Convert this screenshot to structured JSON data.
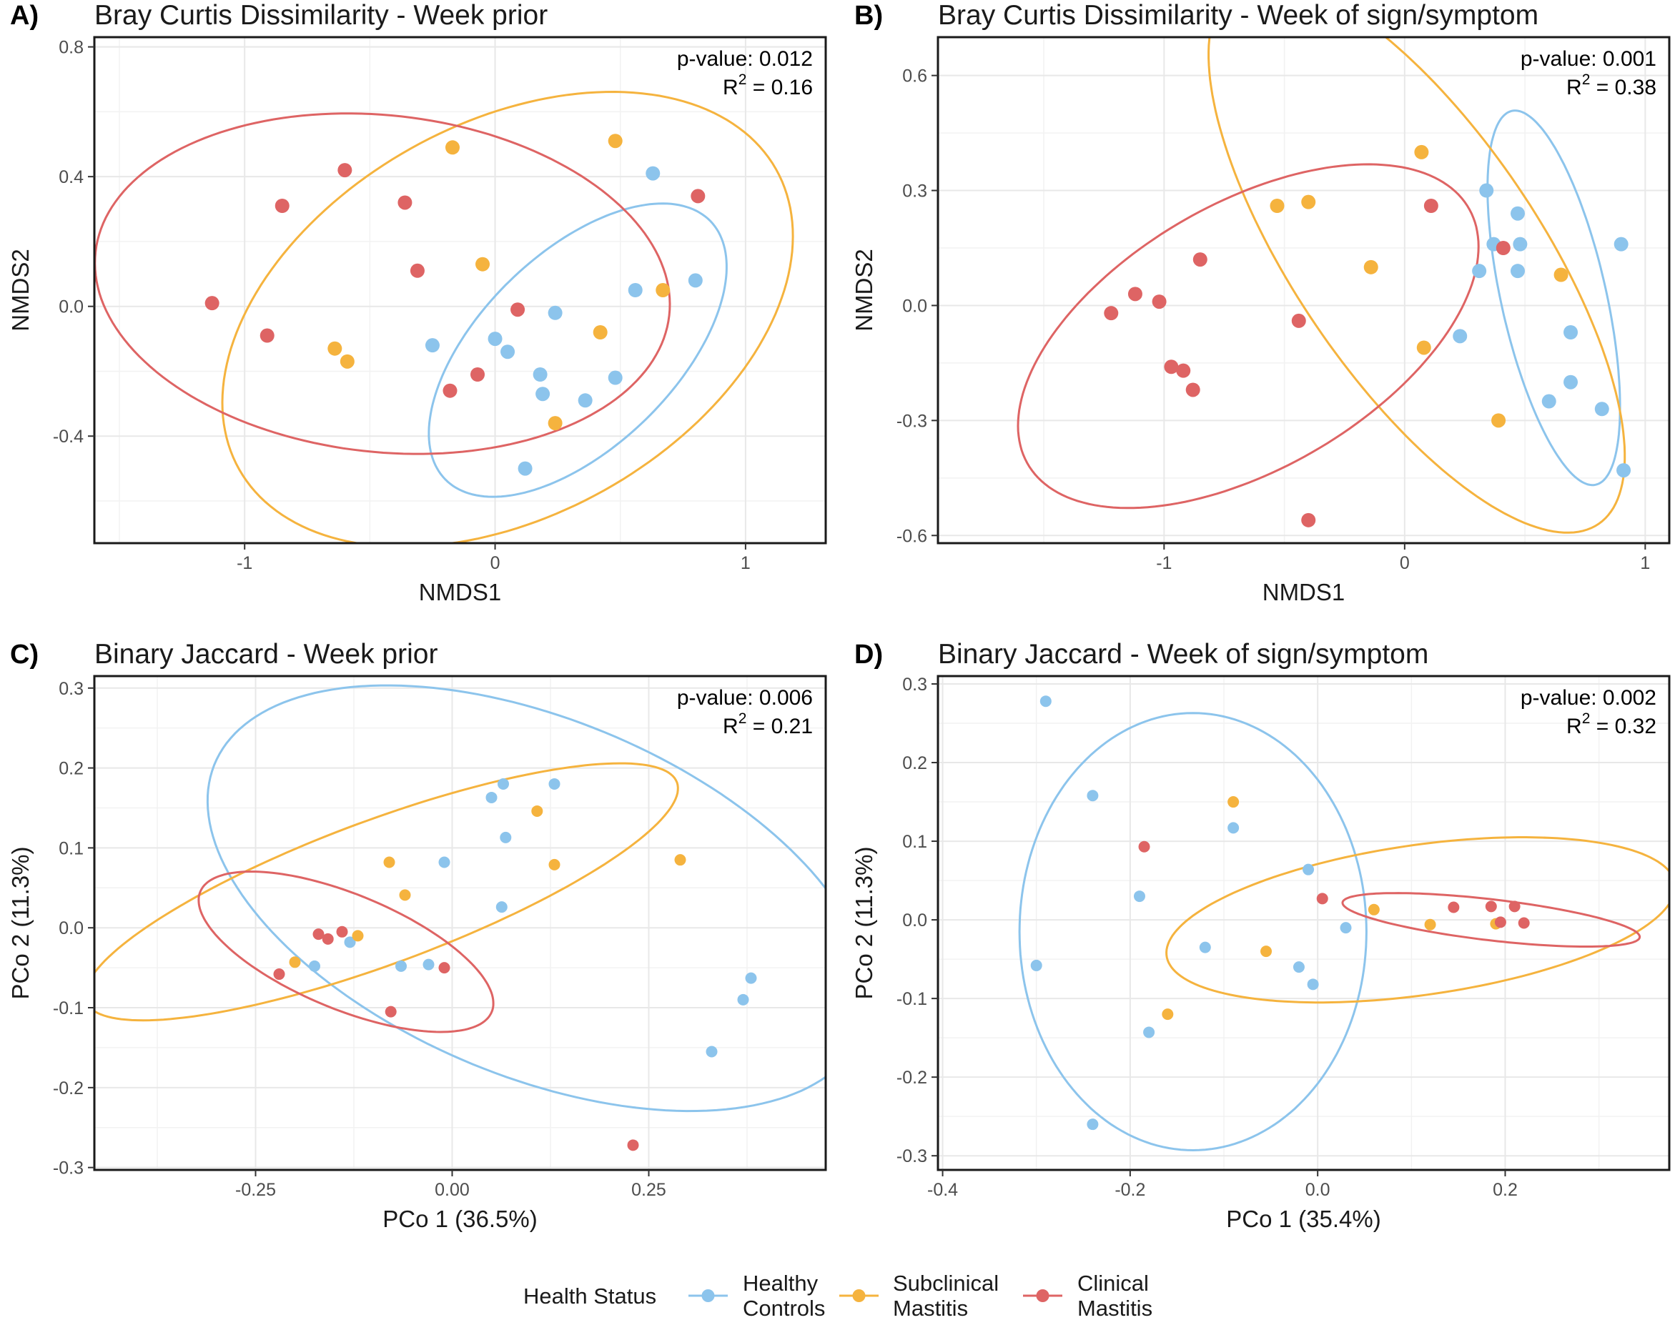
{
  "legend": {
    "title": "Health Status",
    "groups": [
      {
        "key": "HC",
        "line1": "Healthy",
        "line2": "Controls",
        "color": "#8CC4EC"
      },
      {
        "key": "SM",
        "line1": "Subclinical",
        "line2": "Mastitis",
        "color": "#F5B33E"
      },
      {
        "key": "CM",
        "line1": "Clinical",
        "line2": "Mastitis",
        "color": "#DE6464"
      }
    ]
  },
  "chart_data": [
    {
      "type": "scatter",
      "letter": "A)",
      "title": "Bray Curtis Dissimilarity - Week prior",
      "xlabel": "NMDS1",
      "ylabel": "NMDS2",
      "xlim": [
        -1.6,
        1.32
      ],
      "ylim": [
        -0.73,
        0.83
      ],
      "xticks": [
        -1,
        0,
        1
      ],
      "xtick_labels": [
        "-1",
        "0",
        "1"
      ],
      "yticks": [
        -0.4,
        0.0,
        0.4,
        0.8
      ],
      "ytick_labels": [
        "-0.4",
        "0.0",
        "0.4",
        "0.8"
      ],
      "stats": {
        "pvalue": "p-value: 0.012",
        "r2": "0.16"
      },
      "series": [
        {
          "group": "HC",
          "points": [
            [
              0.63,
              0.41
            ],
            [
              0.56,
              0.05
            ],
            [
              0.8,
              0.08
            ],
            [
              0.24,
              -0.02
            ],
            [
              0.0,
              -0.1
            ],
            [
              0.05,
              -0.14
            ],
            [
              -0.25,
              -0.12
            ],
            [
              0.18,
              -0.21
            ],
            [
              0.19,
              -0.27
            ],
            [
              0.36,
              -0.29
            ],
            [
              0.48,
              -0.22
            ],
            [
              0.12,
              -0.5
            ]
          ],
          "ellipse": {
            "cx": 0.33,
            "cy": -0.135,
            "rx": 0.67,
            "ry": 0.33,
            "angle": 32
          }
        },
        {
          "group": "SM",
          "points": [
            [
              -0.17,
              0.49
            ],
            [
              0.48,
              0.51
            ],
            [
              -0.05,
              0.13
            ],
            [
              0.67,
              0.05
            ],
            [
              0.42,
              -0.08
            ],
            [
              -0.64,
              -0.13
            ],
            [
              -0.59,
              -0.17
            ],
            [
              0.24,
              -0.36
            ]
          ],
          "ellipse": {
            "cx": 0.05,
            "cy": -0.04,
            "rx": 1.18,
            "ry": 0.63,
            "angle": 18
          }
        },
        {
          "group": "CM",
          "points": [
            [
              -0.6,
              0.42
            ],
            [
              -0.36,
              0.32
            ],
            [
              -0.85,
              0.31
            ],
            [
              -0.31,
              0.11
            ],
            [
              -1.13,
              0.01
            ],
            [
              -0.91,
              -0.09
            ],
            [
              0.09,
              -0.01
            ],
            [
              -0.07,
              -0.21
            ],
            [
              -0.18,
              -0.26
            ],
            [
              0.81,
              0.34
            ]
          ],
          "ellipse": {
            "cx": -0.45,
            "cy": 0.07,
            "rx": 1.15,
            "ry": 0.52,
            "angle": -4
          }
        }
      ]
    },
    {
      "type": "scatter",
      "letter": "B)",
      "title": "Bray Curtis Dissimilarity - Week of sign/symptom",
      "xlabel": "NMDS1",
      "ylabel": "NMDS2",
      "xlim": [
        -1.94,
        1.1
      ],
      "ylim": [
        -0.62,
        0.7
      ],
      "xticks": [
        -1,
        0,
        1
      ],
      "xtick_labels": [
        "-1",
        "0",
        "1"
      ],
      "yticks": [
        -0.6,
        -0.3,
        0.0,
        0.3,
        0.6
      ],
      "ytick_labels": [
        "-0.6",
        "-0.3",
        "0.0",
        "0.3",
        "0.6"
      ],
      "stats": {
        "pvalue": "p-value: 0.001",
        "r2": "0.38"
      },
      "series": [
        {
          "group": "HC",
          "points": [
            [
              0.34,
              0.3
            ],
            [
              0.37,
              0.16
            ],
            [
              0.47,
              0.24
            ],
            [
              0.48,
              0.16
            ],
            [
              0.47,
              0.09
            ],
            [
              0.31,
              0.09
            ],
            [
              0.9,
              0.16
            ],
            [
              0.69,
              -0.07
            ],
            [
              0.23,
              -0.08
            ],
            [
              0.69,
              -0.2
            ],
            [
              0.6,
              -0.25
            ],
            [
              0.82,
              -0.27
            ],
            [
              0.91,
              -0.43
            ]
          ],
          "ellipse": {
            "cx": 0.62,
            "cy": 0.02,
            "rx": 0.52,
            "ry": 0.21,
            "angle": -68
          }
        },
        {
          "group": "SM",
          "points": [
            [
              0.07,
              0.4
            ],
            [
              -0.53,
              0.26
            ],
            [
              -0.4,
              0.27
            ],
            [
              -0.14,
              0.1
            ],
            [
              0.65,
              0.08
            ],
            [
              0.08,
              -0.11
            ],
            [
              0.39,
              -0.3
            ]
          ],
          "ellipse": {
            "cx": 0.05,
            "cy": 0.13,
            "rx": 1.05,
            "ry": 0.41,
            "angle": -38
          }
        },
        {
          "group": "CM",
          "points": [
            [
              -0.85,
              0.12
            ],
            [
              -1.02,
              0.01
            ],
            [
              -1.12,
              0.03
            ],
            [
              -1.22,
              -0.02
            ],
            [
              -0.97,
              -0.16
            ],
            [
              -0.92,
              -0.17
            ],
            [
              -0.88,
              -0.22
            ],
            [
              -0.44,
              -0.04
            ],
            [
              -0.4,
              -0.56
            ],
            [
              0.11,
              0.26
            ],
            [
              0.41,
              0.15
            ]
          ],
          "ellipse": {
            "cx": -0.65,
            "cy": -0.08,
            "rx": 0.99,
            "ry": 0.37,
            "angle": 16
          }
        }
      ]
    },
    {
      "type": "scatter",
      "letter": "C)",
      "title": "Binary Jaccard - Week prior",
      "xlabel": "PCo 1 (36.5%)",
      "ylabel": "PCo 2 (11.3%)",
      "xlim": [
        -0.455,
        0.475
      ],
      "ylim": [
        -0.303,
        0.315
      ],
      "xticks": [
        -0.25,
        0.0,
        0.25
      ],
      "xtick_labels": [
        "-0.25",
        "0.00",
        "0.25"
      ],
      "yticks": [
        -0.3,
        -0.2,
        -0.1,
        0.0,
        0.1,
        0.2,
        0.3
      ],
      "ytick_labels": [
        "-0.3",
        "-0.2",
        "-0.1",
        "0.0",
        "0.1",
        "0.2",
        "0.3"
      ],
      "stats": {
        "pvalue": "p-value: 0.006",
        "r2": "0.21"
      },
      "series": [
        {
          "group": "HC",
          "points": [
            [
              0.05,
              0.163
            ],
            [
              0.065,
              0.18
            ],
            [
              0.13,
              0.18
            ],
            [
              0.068,
              0.113
            ],
            [
              -0.01,
              0.082
            ],
            [
              0.063,
              0.026
            ],
            [
              -0.13,
              -0.018
            ],
            [
              -0.065,
              -0.048
            ],
            [
              -0.03,
              -0.046
            ],
            [
              -0.175,
              -0.048
            ],
            [
              0.38,
              -0.063
            ],
            [
              0.37,
              -0.09
            ],
            [
              0.33,
              -0.155
            ]
          ],
          "ellipse": {
            "cx": 0.11,
            "cy": 0.037,
            "rx": 0.445,
            "ry": 0.224,
            "angle": -22
          }
        },
        {
          "group": "SM",
          "points": [
            [
              -0.08,
              0.082
            ],
            [
              -0.06,
              0.041
            ],
            [
              0.108,
              0.146
            ],
            [
              0.13,
              0.079
            ],
            [
              0.29,
              0.085
            ],
            [
              -0.2,
              -0.043
            ],
            [
              -0.12,
              -0.01
            ]
          ],
          "ellipse": {
            "cx": -0.09,
            "cy": 0.045,
            "rx": 0.4,
            "ry": 0.09,
            "angle": 20
          }
        },
        {
          "group": "CM",
          "points": [
            [
              -0.17,
              -0.008
            ],
            [
              -0.158,
              -0.014
            ],
            [
              -0.14,
              -0.005
            ],
            [
              -0.22,
              -0.058
            ],
            [
              -0.078,
              -0.105
            ],
            [
              -0.01,
              -0.05
            ],
            [
              0.23,
              -0.272
            ]
          ],
          "ellipse": {
            "cx": -0.135,
            "cy": -0.03,
            "rx": 0.2,
            "ry": 0.072,
            "angle": -22
          }
        }
      ]
    },
    {
      "type": "scatter",
      "letter": "D)",
      "title": "Binary Jaccard - Week of sign/symptom",
      "xlabel": "PCo 1 (35.4%)",
      "ylabel": "PCo 2 (11.3%)",
      "xlim": [
        -0.405,
        0.375
      ],
      "ylim": [
        -0.318,
        0.31
      ],
      "xticks": [
        -0.4,
        -0.2,
        0.0,
        0.2
      ],
      "xtick_labels": [
        "-0.4",
        "-0.2",
        "0.0",
        "0.2"
      ],
      "yticks": [
        -0.3,
        -0.2,
        -0.1,
        0.0,
        0.1,
        0.2,
        0.3
      ],
      "ytick_labels": [
        "-0.3",
        "-0.2",
        "-0.1",
        "0.0",
        "0.1",
        "0.2",
        "0.3"
      ],
      "stats": {
        "pvalue": "p-value: 0.002",
        "r2": "0.32"
      },
      "series": [
        {
          "group": "HC",
          "points": [
            [
              -0.29,
              0.278
            ],
            [
              -0.24,
              0.158
            ],
            [
              -0.09,
              0.117
            ],
            [
              -0.01,
              0.064
            ],
            [
              -0.19,
              0.03
            ],
            [
              -0.3,
              -0.058
            ],
            [
              -0.12,
              -0.035
            ],
            [
              -0.02,
              -0.06
            ],
            [
              -0.005,
              -0.082
            ],
            [
              -0.18,
              -0.143
            ],
            [
              -0.24,
              -0.26
            ],
            [
              0.03,
              -0.01
            ]
          ],
          "ellipse": {
            "cx": -0.133,
            "cy": -0.015,
            "rx": 0.185,
            "ry": 0.278,
            "angle": 0
          }
        },
        {
          "group": "SM",
          "points": [
            [
              -0.09,
              0.15
            ],
            [
              0.06,
              0.013
            ],
            [
              -0.055,
              -0.04
            ],
            [
              -0.16,
              -0.12
            ],
            [
              0.12,
              -0.006
            ],
            [
              0.19,
              -0.005
            ]
          ],
          "ellipse": {
            "cx": 0.11,
            "cy": 0.0,
            "rx": 0.275,
            "ry": 0.095,
            "angle": 10
          }
        },
        {
          "group": "CM",
          "points": [
            [
              -0.185,
              0.093
            ],
            [
              0.005,
              0.027
            ],
            [
              0.145,
              0.016
            ],
            [
              0.185,
              0.017
            ],
            [
              0.21,
              0.017
            ],
            [
              0.195,
              -0.003
            ],
            [
              0.22,
              -0.004
            ]
          ],
          "ellipse": {
            "cx": 0.185,
            "cy": 0.0,
            "rx": 0.16,
            "ry": 0.026,
            "angle": -8
          }
        }
      ]
    }
  ]
}
